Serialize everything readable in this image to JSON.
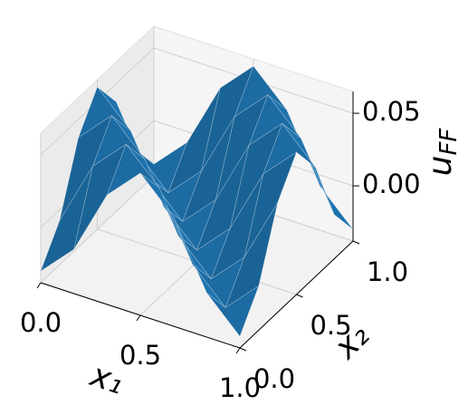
{
  "chart_data": {
    "type": "surface",
    "xlabel": "x₁",
    "ylabel": "x₂",
    "zlabel": [
      "u",
      "FF"
    ],
    "x": [
      0,
      0.1667,
      0.3333,
      0.5,
      0.6667,
      0.8333,
      1
    ],
    "y": [
      0,
      0.1667,
      0.3333,
      0.5,
      0.6667,
      0.8333,
      1
    ],
    "z": [
      [
        -0.03,
        -0.0075,
        0.0375,
        0.06,
        0.0375,
        -0.0075,
        -0.03
      ],
      [
        -0.0075,
        0.0375,
        0.06,
        0.0375,
        -0.0075,
        -0.03,
        -0.0075
      ],
      [
        0.0375,
        0.06,
        0.0375,
        -0.0075,
        -0.03,
        -0.0075,
        0.0375
      ],
      [
        0.06,
        0.0375,
        -0.0075,
        -0.03,
        -0.0075,
        0.0375,
        0.06
      ],
      [
        0.0375,
        -0.0075,
        -0.03,
        -0.0075,
        0.0375,
        0.06,
        0.0375
      ],
      [
        -0.0075,
        -0.03,
        -0.0075,
        0.0375,
        0.06,
        0.0375,
        -0.0075
      ],
      [
        -0.03,
        -0.0075,
        0.0375,
        0.06,
        0.0375,
        -0.0075,
        -0.03
      ]
    ],
    "color": "#1f77b4",
    "xlim": [
      0,
      1
    ],
    "ylim": [
      0,
      1
    ],
    "zlim": [
      -0.038,
      0.065
    ],
    "xticks": [
      {
        "value": 0,
        "label": "0.0"
      },
      {
        "value": 0.5,
        "label": "0.5"
      },
      {
        "value": 1,
        "label": "1.0"
      }
    ],
    "yticks": [
      {
        "value": 0,
        "label": "0.0"
      },
      {
        "value": 0.5,
        "label": "0.5"
      },
      {
        "value": 1,
        "label": "1.0"
      }
    ],
    "zticks": [
      {
        "value": 0,
        "label": "0.00"
      },
      {
        "value": 0.05,
        "label": "0.05"
      }
    ],
    "grid": true
  }
}
